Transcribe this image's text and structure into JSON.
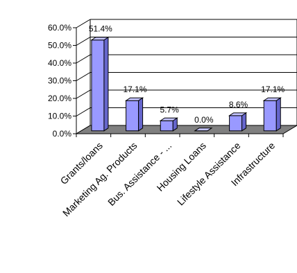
{
  "chart_data": {
    "type": "bar",
    "categories": [
      "Grants/loans",
      "Marketing Ag. Products",
      "Bus. Assistance - ...",
      "Housing Loans",
      "Lifestyle Assistance",
      "Infrastructure"
    ],
    "values": [
      51.4,
      17.1,
      5.7,
      0.0,
      8.6,
      17.1
    ],
    "data_labels": [
      "51.4%",
      "17.1%",
      "5.7%",
      "0.0%",
      "8.6%",
      "17.1%"
    ],
    "y_ticks": [
      "0.0%",
      "10.0%",
      "20.0%",
      "30.0%",
      "40.0%",
      "50.0%",
      "60.0%"
    ],
    "title": "",
    "xlabel": "",
    "ylabel": "",
    "ylim": [
      0,
      60
    ],
    "grid": true,
    "legend": "none",
    "three_d": true,
    "colors": {
      "bar_front": "#9999ff",
      "bar_side": "#6666cc",
      "bar_top": "#c4c4ff",
      "floor": "#808080",
      "outline": "#000000",
      "grid": "#000000"
    }
  }
}
